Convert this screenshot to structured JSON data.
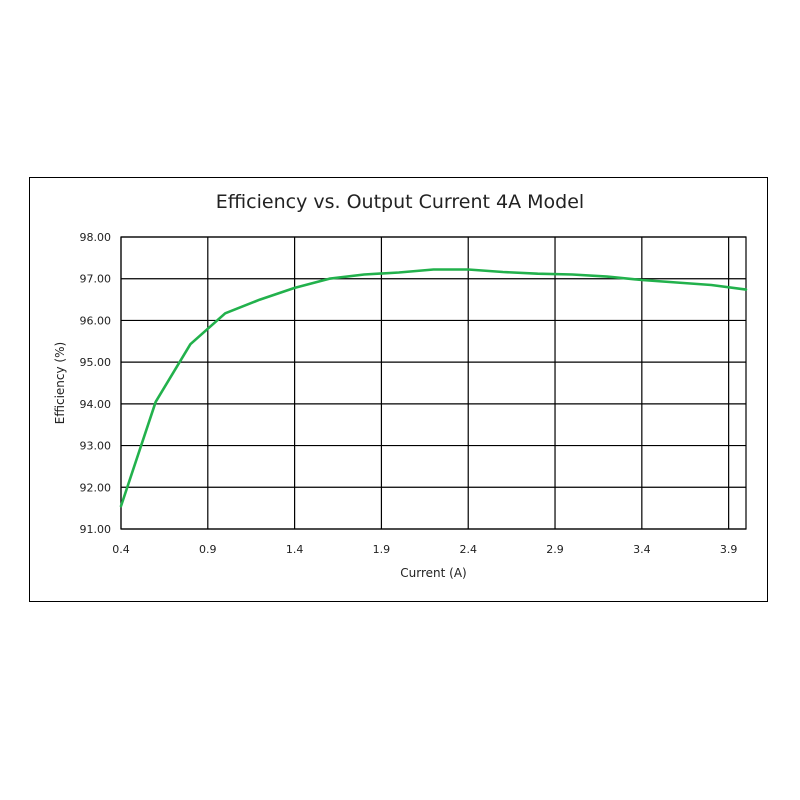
{
  "chart_data": {
    "type": "line",
    "title": "Efficiency vs. Output Current 4A Model",
    "xlabel": "Current (A)",
    "ylabel": "Efficiency (%)",
    "xlim": [
      0.4,
      4.0
    ],
    "ylim": [
      91.0,
      98.0
    ],
    "x_ticks": [
      "0.4",
      "0.9",
      "1.4",
      "1.9",
      "2.4",
      "2.9",
      "3.4",
      "3.9"
    ],
    "x_tick_values": [
      0.4,
      0.9,
      1.4,
      1.9,
      2.4,
      2.9,
      3.4,
      3.9
    ],
    "y_ticks": [
      "98.00",
      "97.00",
      "96.00",
      "95.00",
      "94.00",
      "93.00",
      "92.00",
      "91.00"
    ],
    "y_tick_values": [
      98,
      97,
      96,
      95,
      94,
      93,
      92,
      91
    ],
    "grid": true,
    "legend": "none",
    "series": [
      {
        "color": "#22b14c",
        "x": [
          0.4,
          0.6,
          0.8,
          1.0,
          1.2,
          1.4,
          1.6,
          1.8,
          2.0,
          2.2,
          2.4,
          2.6,
          2.8,
          3.0,
          3.2,
          3.4,
          3.6,
          3.8,
          4.0
        ],
        "y": [
          91.55,
          94.05,
          95.43,
          96.17,
          96.5,
          96.78,
          97.0,
          97.1,
          97.15,
          97.22,
          97.22,
          97.16,
          97.12,
          97.1,
          97.05,
          96.97,
          96.91,
          96.85,
          96.74
        ]
      }
    ]
  }
}
